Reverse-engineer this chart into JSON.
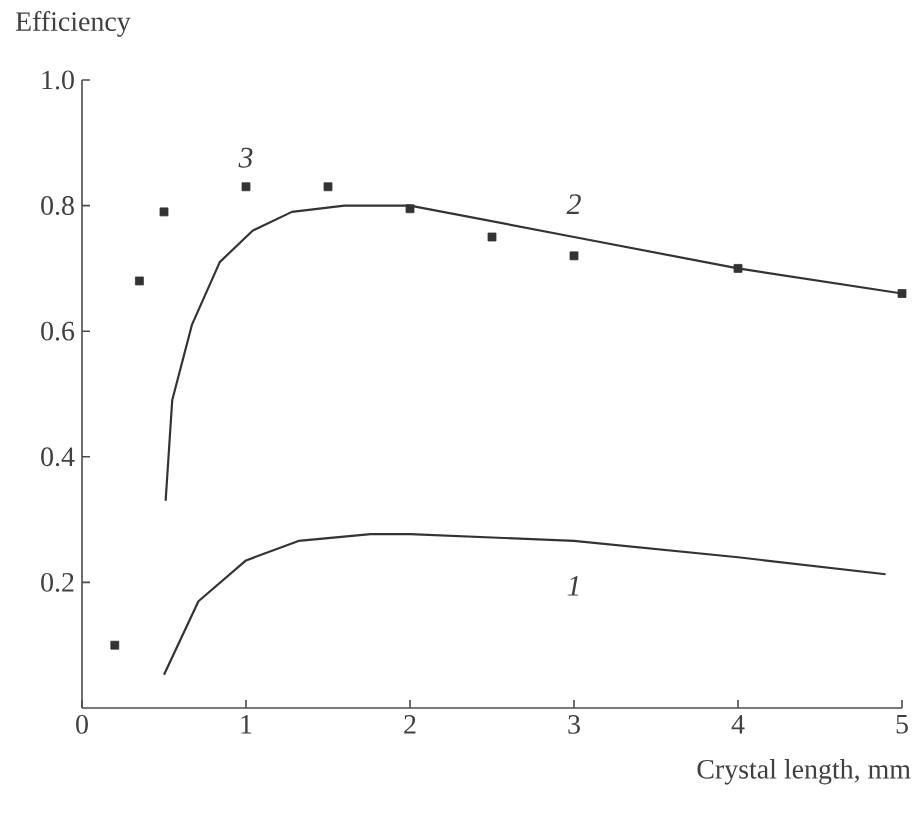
{
  "chart_data": {
    "type": "line",
    "xlabel": "Crystal length, mm",
    "ylabel": "Efficiency",
    "xlim": [
      0,
      5
    ],
    "ylim": [
      0,
      1.0
    ],
    "xticks": [
      0,
      1,
      2,
      3,
      4,
      5
    ],
    "yticks": [
      0.2,
      0.4,
      0.6,
      0.8,
      {
        "value": 1.0,
        "label": "1.0"
      }
    ],
    "grid": false,
    "legend": false,
    "series": [
      {
        "name": "1",
        "color": "#333333",
        "marker": "none",
        "line_style": "solid",
        "x": [
          0.5,
          0.71,
          1.0,
          1.32,
          1.76,
          2.0,
          3.0,
          4.0,
          4.9
        ],
        "values": [
          0.053,
          0.17,
          0.235,
          0.266,
          0.277,
          0.277,
          0.266,
          0.24,
          0.213
        ]
      },
      {
        "name": "2",
        "color": "#333333",
        "marker": "none",
        "line_style": "solid",
        "x": [
          0.51,
          0.55,
          0.67,
          0.84,
          1.04,
          1.28,
          1.6,
          2.0,
          3.0,
          4.0,
          5.0
        ],
        "values": [
          0.33,
          0.49,
          0.61,
          0.71,
          0.76,
          0.79,
          0.8,
          0.8,
          0.75,
          0.7,
          0.66
        ]
      },
      {
        "name": "3",
        "type": "scatter",
        "color": "#333333",
        "marker": "square",
        "x": [
          0.2,
          0.35,
          0.5,
          1.0,
          1.5,
          2.0,
          2.5,
          3.0,
          4.0,
          5.0
        ],
        "values": [
          0.1,
          0.68,
          0.79,
          0.83,
          0.83,
          0.795,
          0.75,
          0.72,
          0.7,
          0.66
        ]
      }
    ]
  }
}
